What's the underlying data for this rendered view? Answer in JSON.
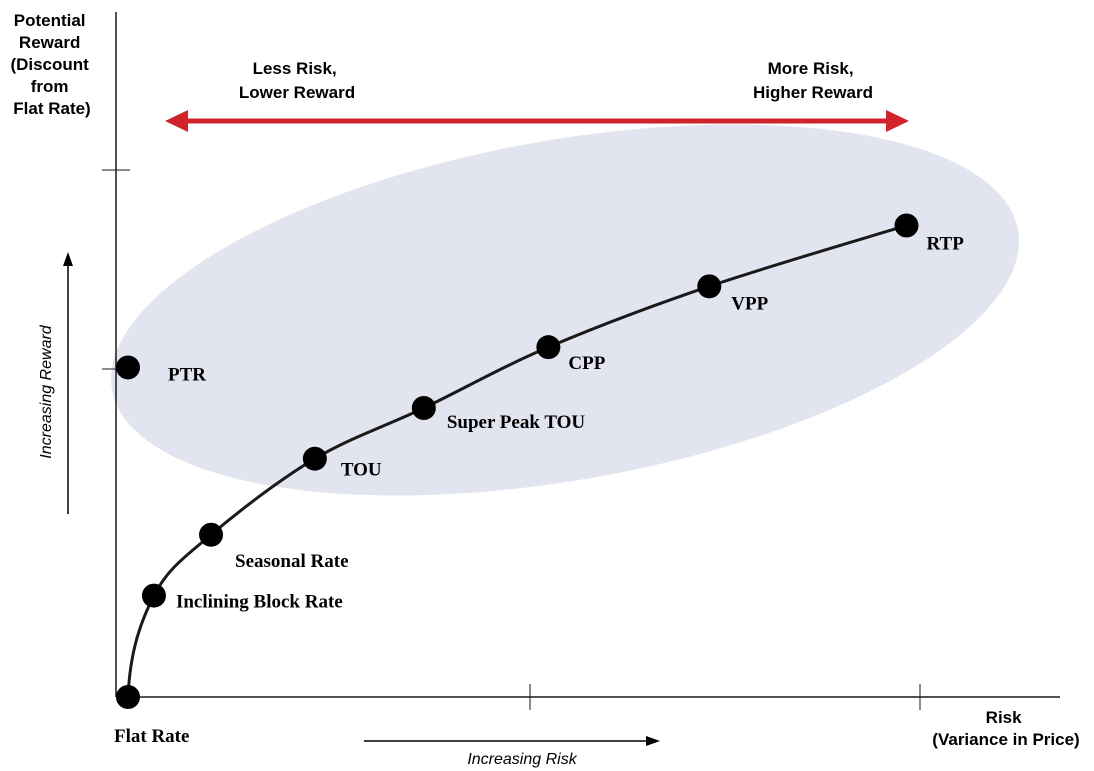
{
  "chart_data": {
    "type": "scatter",
    "y_axis_label_lines": [
      "Potential",
      "Reward",
      "(Discount",
      "from",
      "Flat Rate)"
    ],
    "x_axis_label_lines": [
      "Risk",
      "(Variance in Price)"
    ],
    "y_direction_label": "Increasing Reward",
    "x_direction_label": "Increasing Risk",
    "left_banner_lines": [
      "Less Risk,",
      "Lower Reward"
    ],
    "right_banner_lines": [
      "More Risk,",
      "Higher Reward"
    ],
    "origin_label": "Flat Rate",
    "colors": {
      "arrow": "#d2232a",
      "ellipse": "#e2e4f0",
      "line": "#1a1a1a",
      "points": "#000000"
    },
    "curve_points": [
      {
        "label": "Flat Rate",
        "x": 0.0,
        "y": 0.0,
        "on_curve": true
      },
      {
        "label": "Inclining Block Rate",
        "x": 0.05,
        "y": 0.2,
        "on_curve": true
      },
      {
        "label": "Seasonal Rate",
        "x": 0.16,
        "y": 0.32,
        "on_curve": true
      },
      {
        "label": "TOU",
        "x": 0.36,
        "y": 0.47,
        "on_curve": true
      },
      {
        "label": "Super Peak TOU",
        "x": 0.57,
        "y": 0.57,
        "on_curve": true
      },
      {
        "label": "CPP",
        "x": 0.81,
        "y": 0.69,
        "on_curve": true
      },
      {
        "label": "VPP",
        "x": 1.12,
        "y": 0.81,
        "on_curve": true
      },
      {
        "label": "RTP",
        "x": 1.5,
        "y": 0.93,
        "on_curve": true
      }
    ],
    "separate_point": {
      "label": "PTR",
      "x": 0.0,
      "y": 0.65,
      "on_curve": false
    }
  }
}
